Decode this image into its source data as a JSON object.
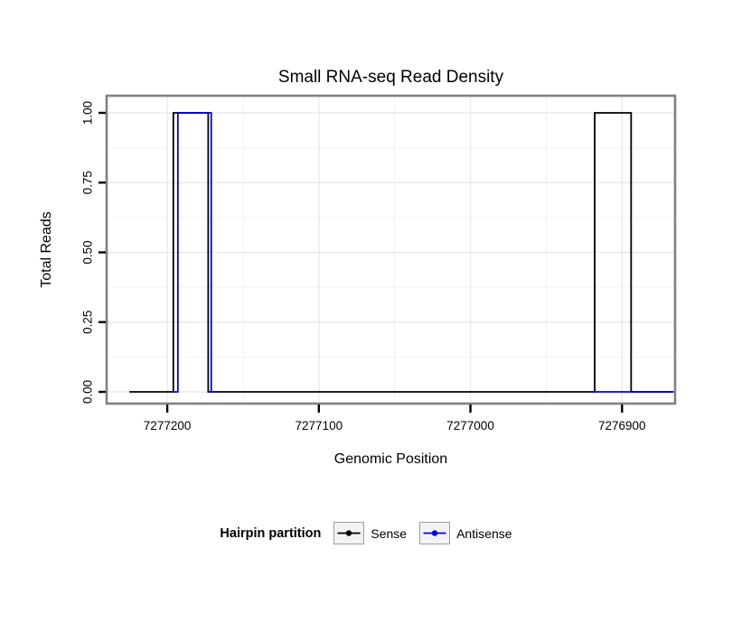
{
  "page": {
    "background": "#ffffff"
  },
  "chart_data": {
    "type": "line",
    "title": "Small RNA-seq Read Density",
    "xlabel": "Genomic Position",
    "ylabel": "Total Reads",
    "x_reversed": true,
    "xlim": [
      7277240,
      7276865
    ],
    "x_ticks": [
      7277200,
      7277100,
      7277000,
      7276900
    ],
    "x_tick_labels": [
      "7277200",
      "7277100",
      "7277000",
      "7276900"
    ],
    "x_minor_ticks": [
      7277150,
      7277050,
      7276950
    ],
    "ylim": [
      -0.04,
      1.06
    ],
    "y_ticks": [
      0,
      0.25,
      0.5,
      0.75,
      1
    ],
    "y_tick_labels": [
      "0.00",
      "0.25",
      "0.50",
      "0.75",
      "1.00"
    ],
    "y_minor_ticks": [
      0.125,
      0.375,
      0.625,
      0.875
    ],
    "grid": "on",
    "legend": {
      "title": "Hairpin partition",
      "position": "bottom",
      "entries": [
        "Sense",
        "Antisense"
      ]
    },
    "series": [
      {
        "name": "Sense",
        "color": "#000000",
        "segments": [
          [
            [
              7277225,
              0
            ],
            [
              7277196,
              0
            ],
            [
              7277196,
              1
            ],
            [
              7277173,
              1
            ],
            [
              7277173,
              0
            ],
            [
              7276918,
              0
            ],
            [
              7276918,
              1
            ],
            [
              7276894,
              1
            ],
            [
              7276894,
              0
            ],
            [
              7276866,
              0
            ]
          ]
        ]
      },
      {
        "name": "Antisense",
        "color": "#0000dd",
        "segments": [
          [
            [
              7277196,
              0
            ],
            [
              7277193,
              0
            ],
            [
              7277193,
              1
            ],
            [
              7277171,
              1
            ],
            [
              7277171,
              0
            ],
            [
              7277168,
              0
            ]
          ],
          [
            [
              7276919,
              0
            ],
            [
              7276866,
              0
            ]
          ]
        ]
      }
    ]
  }
}
